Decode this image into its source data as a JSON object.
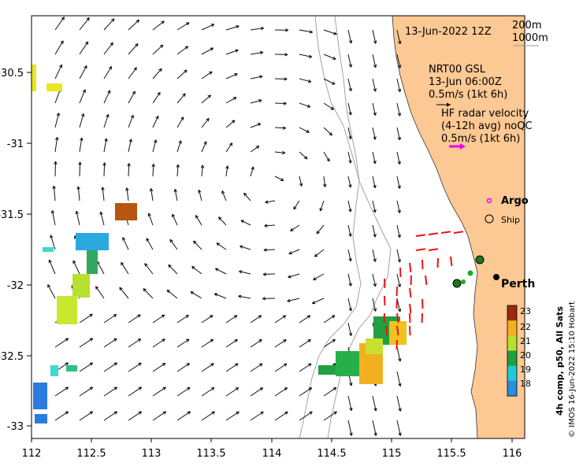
{
  "map": {
    "date_label": "13-Jun-2022 12Z",
    "contours": [
      "200m",
      "1000m"
    ],
    "model_legend": [
      "NRT00 GSL",
      "13-Jun 06:00Z",
      "0.5m/s (1kt 6h)"
    ],
    "radar_legend": [
      "HF radar velocity",
      "(4-12h avg) noQC",
      "0.5m/s (1kt 6h)"
    ],
    "argo_label": "Argo",
    "ship_label": "Ship",
    "city_label": "Perth",
    "credit": "© IMOS 16-Jun-2022 15:10 Hobart",
    "colorbar_title": "4h comp, p50, All Sats",
    "colorbar_ticks": [
      "23",
      "22",
      "21",
      "20",
      "19",
      "18"
    ],
    "x_ticks": [
      "112",
      "112.5",
      "113",
      "113.5",
      "114",
      "114.5",
      "115",
      "115.5",
      "116"
    ],
    "y_ticks": [
      "-30.5",
      "-31",
      "-31.5",
      "-32",
      "-32.5",
      "-33"
    ],
    "colors": {
      "land": "#fcc893",
      "radar": "#ee1111",
      "argo": "#ee00ee",
      "frame": "#000000"
    }
  }
}
